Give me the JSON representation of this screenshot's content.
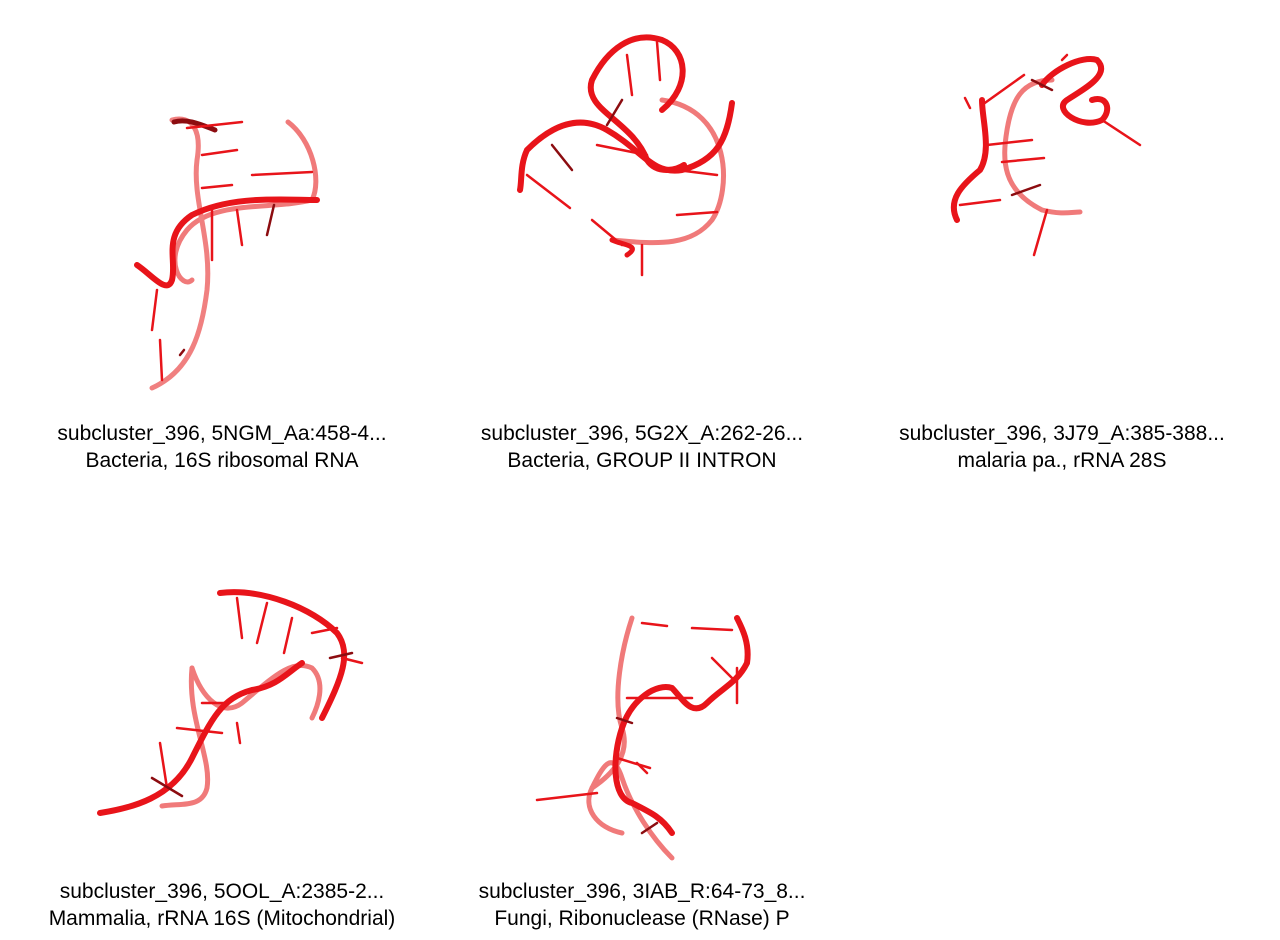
{
  "panels": [
    {
      "title": "subcluster_396, 5NGM_Aa:458-4...",
      "subtitle": "Bacteria, 16S ribosomal RNA",
      "structure_icon": "rna-strand-icon"
    },
    {
      "title": "subcluster_396, 5G2X_A:262-26...",
      "subtitle": "Bacteria, GROUP II INTRON",
      "structure_icon": "rna-strand-icon"
    },
    {
      "title": "subcluster_396, 3J79_A:385-388...",
      "subtitle": "malaria pa., rRNA 28S",
      "structure_icon": "rna-strand-icon"
    },
    {
      "title": "subcluster_396, 5OOL_A:2385-2...",
      "subtitle": "Mammalia, rRNA 16S (Mitochondrial)",
      "structure_icon": "rna-strand-icon"
    },
    {
      "title": "subcluster_396, 3IAB_R:64-73_8...",
      "subtitle": "Fungi, Ribonuclease (RNase) P",
      "structure_icon": "rna-strand-icon"
    }
  ],
  "colors": {
    "strand": "#e8141a",
    "strand_dark": "#8c0c10",
    "strand_light": "#f07a7a",
    "text": "#000000"
  }
}
